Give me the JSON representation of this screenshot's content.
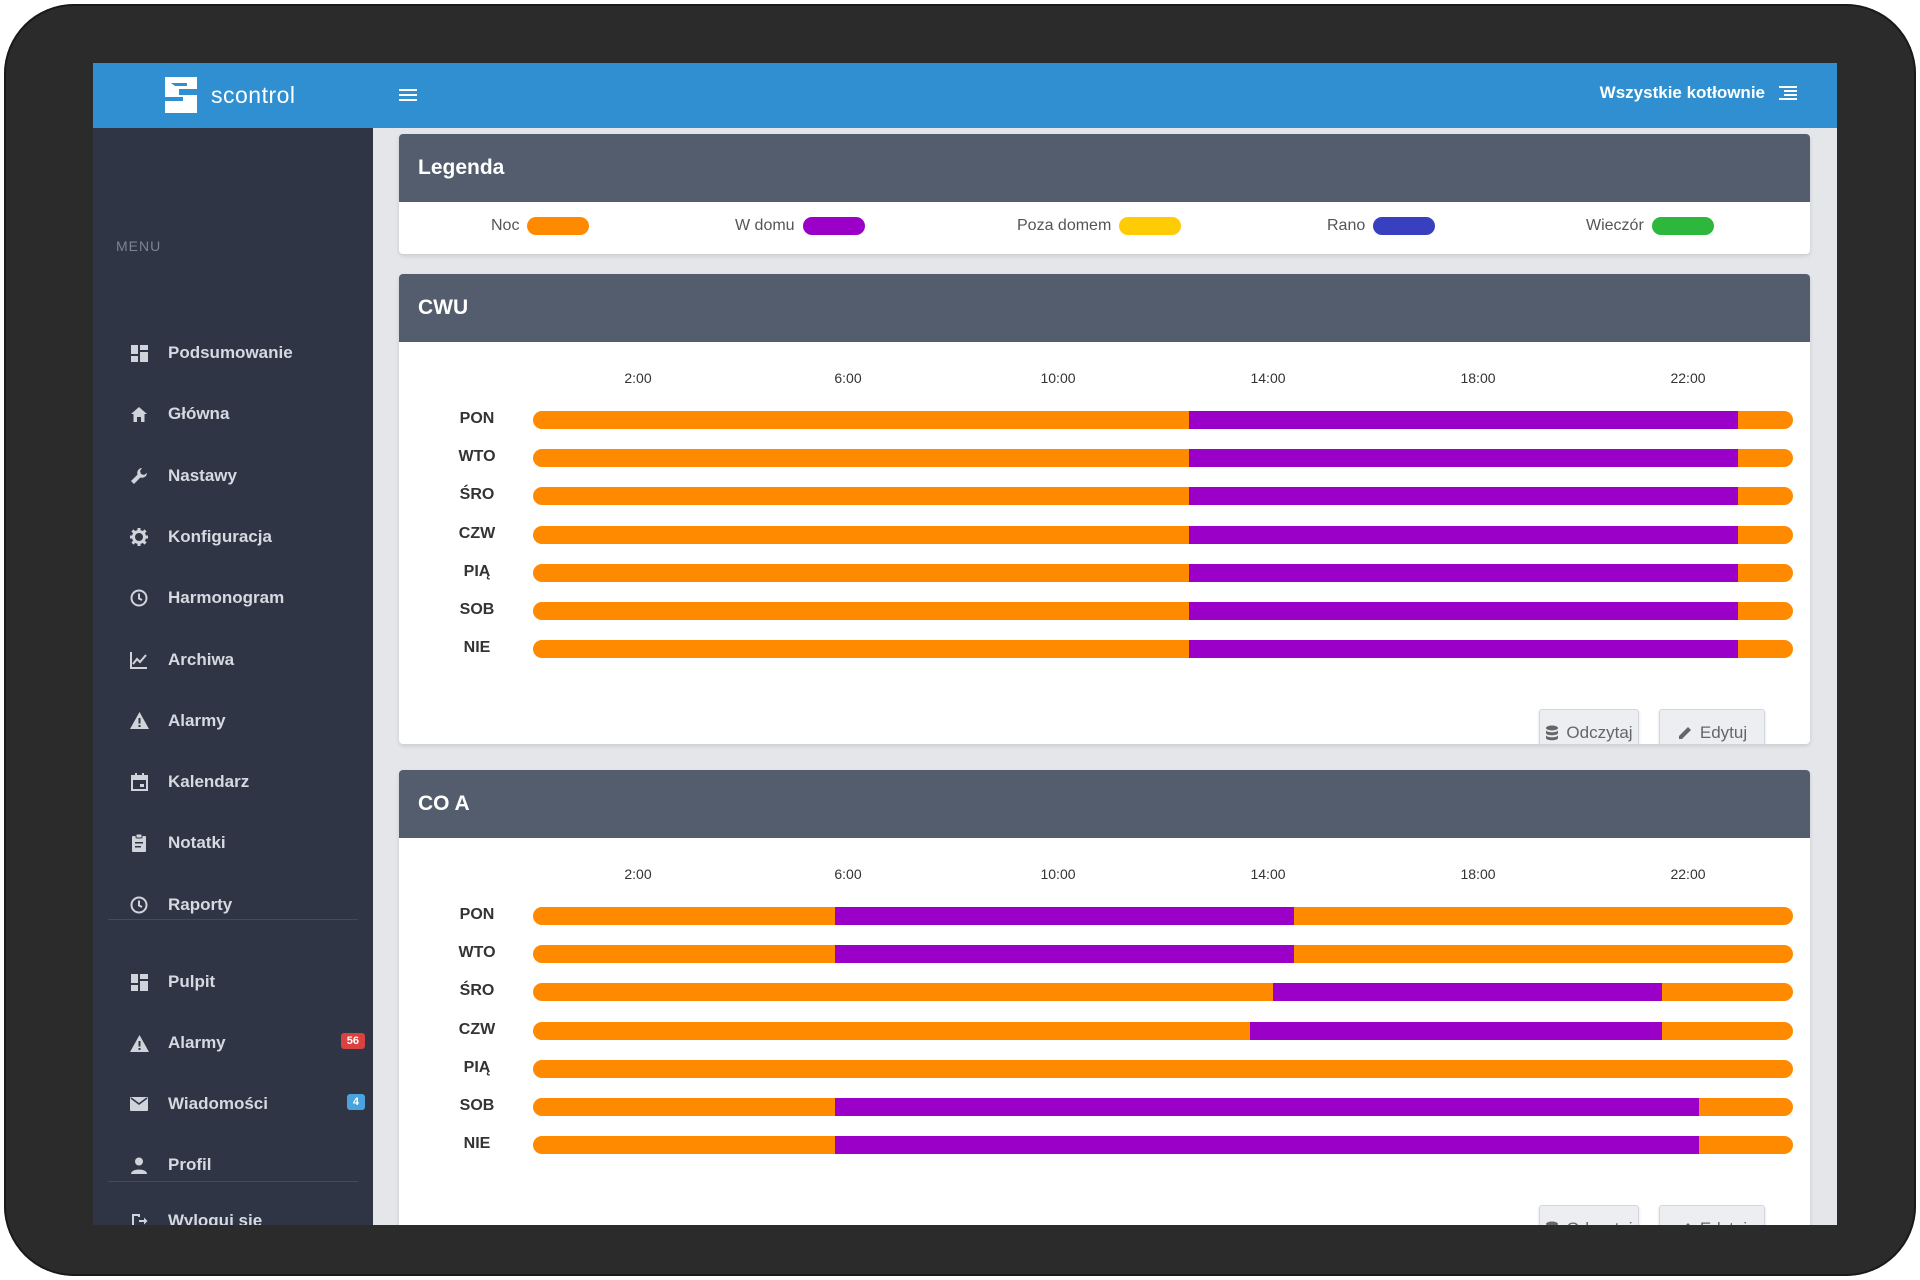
{
  "app": {
    "name": "scontrol"
  },
  "topbar": {
    "boilers_label": "Wszystkie kotłownie"
  },
  "sidebar": {
    "menu_label": "MENU",
    "items": [
      {
        "label": "Podsumowanie",
        "icon": "dashboard-icon"
      },
      {
        "label": "Główna",
        "icon": "home-icon"
      },
      {
        "label": "Nastawy",
        "icon": "wrench-icon"
      },
      {
        "label": "Konfiguracja",
        "icon": "gear-icon"
      },
      {
        "label": "Harmonogram",
        "icon": "clock-icon"
      },
      {
        "label": "Archiwa",
        "icon": "chart-line-icon"
      },
      {
        "label": "Alarmy",
        "icon": "warning-icon"
      },
      {
        "label": "Kalendarz",
        "icon": "calendar-icon"
      },
      {
        "label": "Notatki",
        "icon": "clipboard-icon"
      },
      {
        "label": "Raporty",
        "icon": "clock-icon"
      }
    ],
    "secondary_items": [
      {
        "label": "Pulpit",
        "icon": "dashboard-icon",
        "badge": ""
      },
      {
        "label": "Alarmy",
        "icon": "warning-icon",
        "badge": "56"
      },
      {
        "label": "Wiadomości",
        "icon": "mail-icon",
        "badge": "4"
      },
      {
        "label": "Profil",
        "icon": "user-icon",
        "badge": ""
      }
    ],
    "logout_label": "Wyloguj się"
  },
  "legend": {
    "title": "Legenda",
    "items": [
      {
        "label": "Noc",
        "color": "#ff8a00"
      },
      {
        "label": "W domu",
        "color": "#9b00c8"
      },
      {
        "label": "Poza domem",
        "color": "#ffcb05"
      },
      {
        "label": "Rano",
        "color": "#3840c0"
      },
      {
        "label": "Wieczór",
        "color": "#2db83d"
      }
    ]
  },
  "schedules": [
    {
      "title": "CWU",
      "hours": [
        "2:00",
        "6:00",
        "10:00",
        "14:00",
        "18:00",
        "22:00"
      ],
      "days": [
        {
          "day": "PON",
          "segments": [
            [
              "Noc",
              0,
              12.5
            ],
            [
              "W domu",
              12.5,
              22.95
            ],
            [
              "Noc",
              22.95,
              24
            ]
          ]
        },
        {
          "day": "WTO",
          "segments": [
            [
              "Noc",
              0,
              12.5
            ],
            [
              "W domu",
              12.5,
              22.95
            ],
            [
              "Noc",
              22.95,
              24
            ]
          ]
        },
        {
          "day": "ŚRO",
          "segments": [
            [
              "Noc",
              0,
              12.5
            ],
            [
              "W domu",
              12.5,
              22.95
            ],
            [
              "Noc",
              22.95,
              24
            ]
          ]
        },
        {
          "day": "CZW",
          "segments": [
            [
              "Noc",
              0,
              12.5
            ],
            [
              "W domu",
              12.5,
              22.95
            ],
            [
              "Noc",
              22.95,
              24
            ]
          ]
        },
        {
          "day": "PIĄ",
          "segments": [
            [
              "Noc",
              0,
              12.5
            ],
            [
              "W domu",
              12.5,
              22.95
            ],
            [
              "Noc",
              22.95,
              24
            ]
          ]
        },
        {
          "day": "SOB",
          "segments": [
            [
              "Noc",
              0,
              12.5
            ],
            [
              "W domu",
              12.5,
              22.95
            ],
            [
              "Noc",
              22.95,
              24
            ]
          ]
        },
        {
          "day": "NIE",
          "segments": [
            [
              "Noc",
              0,
              12.5
            ],
            [
              "W domu",
              12.5,
              22.95
            ],
            [
              "Noc",
              22.95,
              24
            ]
          ]
        }
      ],
      "read_label": "Odczytaj",
      "edit_label": "Edytuj"
    },
    {
      "title": "CO A",
      "hours": [
        "2:00",
        "6:00",
        "10:00",
        "14:00",
        "18:00",
        "22:00"
      ],
      "days": [
        {
          "day": "PON",
          "segments": [
            [
              "Noc",
              0,
              5.75
            ],
            [
              "W domu",
              5.75,
              14.5
            ],
            [
              "Noc",
              14.5,
              24
            ]
          ]
        },
        {
          "day": "WTO",
          "segments": [
            [
              "Noc",
              0,
              5.75
            ],
            [
              "W domu",
              5.75,
              14.5
            ],
            [
              "Noc",
              14.5,
              24
            ]
          ]
        },
        {
          "day": "ŚRO",
          "segments": [
            [
              "Noc",
              0,
              14.1
            ],
            [
              "W domu",
              14.1,
              21.5
            ],
            [
              "Noc",
              21.5,
              24
            ]
          ]
        },
        {
          "day": "CZW",
          "segments": [
            [
              "Noc",
              0,
              13.65
            ],
            [
              "W domu",
              13.65,
              21.5
            ],
            [
              "Noc",
              21.5,
              24
            ]
          ]
        },
        {
          "day": "PIĄ",
          "segments": [
            [
              "Noc",
              0,
              24
            ]
          ]
        },
        {
          "day": "SOB",
          "segments": [
            [
              "Noc",
              0,
              5.75
            ],
            [
              "W domu",
              5.75,
              22.2
            ],
            [
              "Noc",
              22.2,
              24
            ]
          ]
        },
        {
          "day": "NIE",
          "segments": [
            [
              "Noc",
              0,
              5.75
            ],
            [
              "W domu",
              5.75,
              22.2
            ],
            [
              "Noc",
              22.2,
              24
            ]
          ]
        }
      ],
      "read_label": "Odczytaj",
      "edit_label": "Edytuj"
    }
  ]
}
